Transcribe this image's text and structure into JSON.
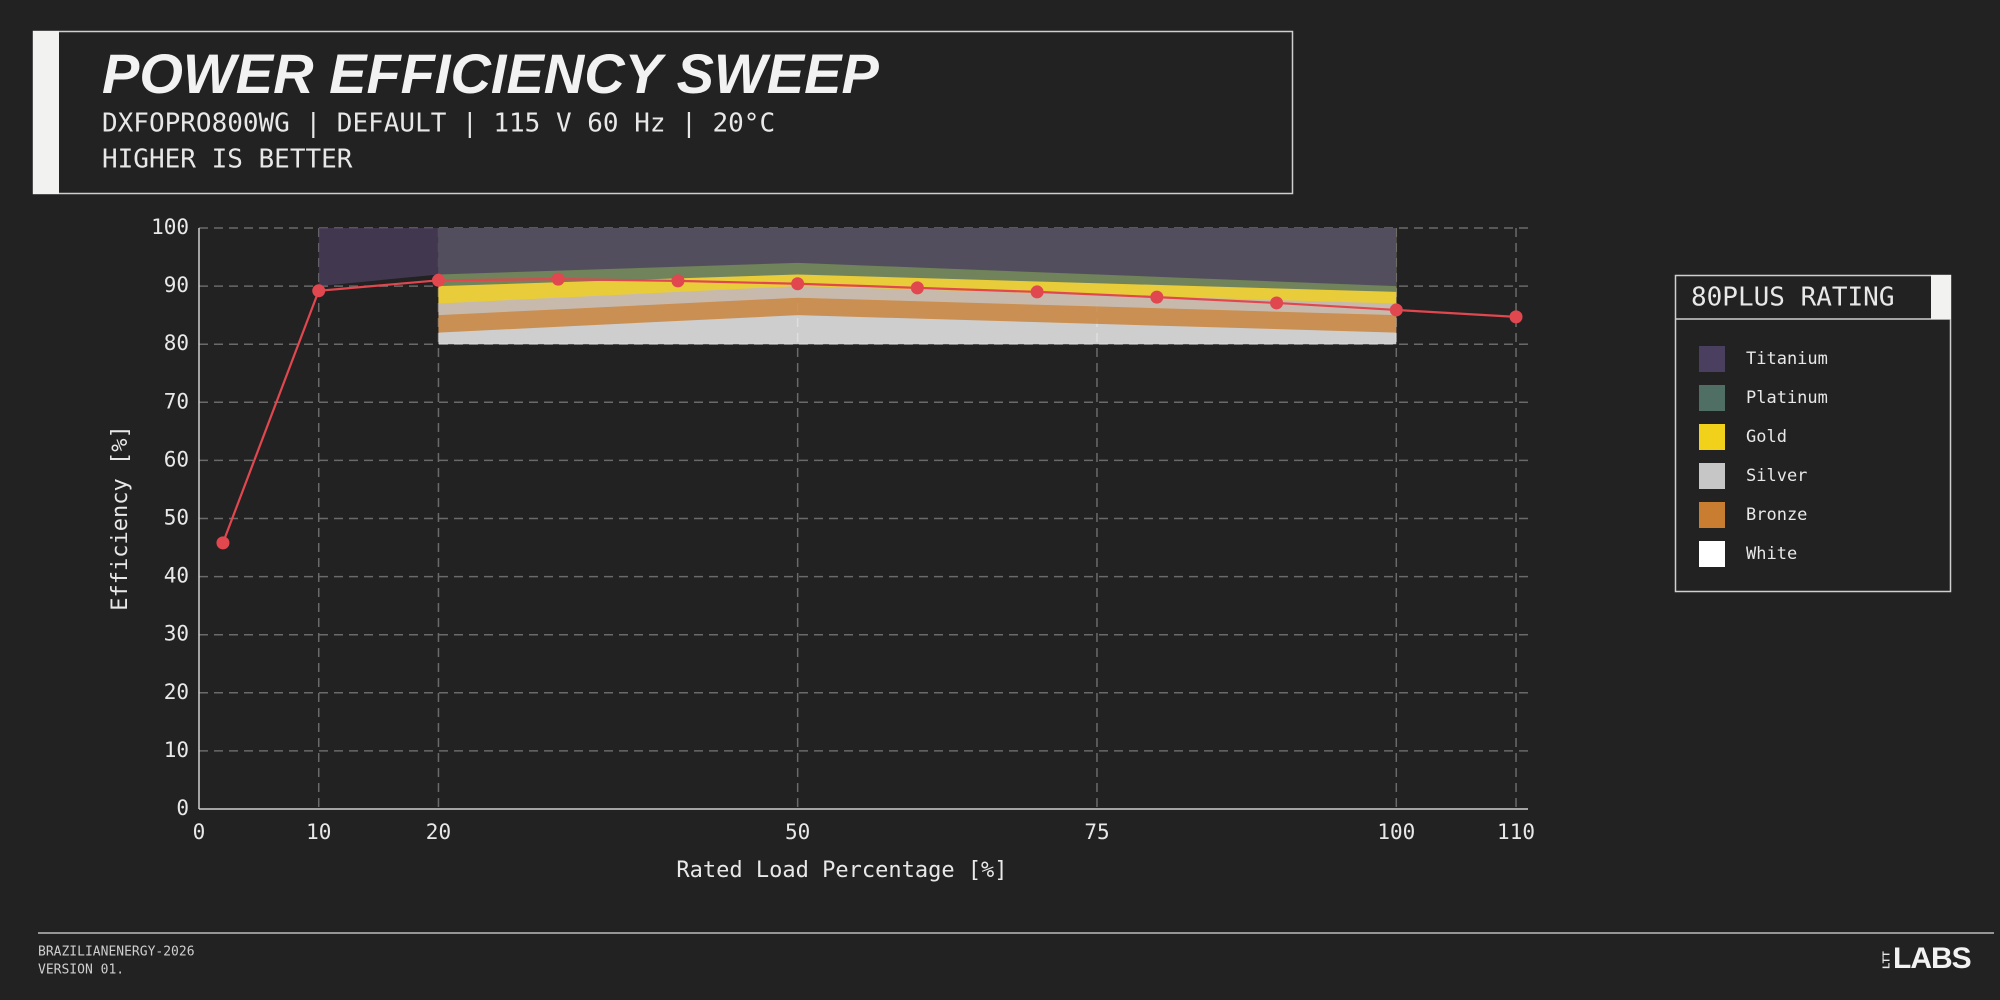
{
  "chart_data": {
    "type": "line",
    "title": "POWER EFFICIENCY SWEEP",
    "subtitle": [
      "DXFOPRO800WG | DEFAULT | 115 V 60 Hz | 20°C",
      "HIGHER IS BETTER"
    ],
    "ylabel": "Efficiency [%]",
    "xlabel": "Rated Load Percentage [%]",
    "xlim": [
      0,
      111
    ],
    "ylim": [
      0,
      100
    ],
    "xticks": [
      0,
      10,
      20,
      50,
      75,
      100,
      110
    ],
    "yticks": [
      0,
      10,
      20,
      30,
      40,
      50,
      60,
      70,
      80,
      90,
      100
    ],
    "grid": true,
    "legend": {
      "title": "80PLUS RATING",
      "position": "right"
    },
    "bands": [
      {
        "name": "Titanium",
        "color": "#4a3f5e",
        "x": [
          10,
          20,
          50,
          100
        ],
        "values": [
          90,
          92,
          94,
          90
        ]
      },
      {
        "name": "Platinum",
        "color": "#4f6e64",
        "x": [
          20,
          50,
          100
        ],
        "values": [
          90,
          92,
          89
        ]
      },
      {
        "name": "Gold",
        "color": "#f2d11a",
        "x": [
          20,
          50,
          100
        ],
        "values": [
          87,
          90,
          87
        ]
      },
      {
        "name": "Silver",
        "color": "#c6c6c6",
        "x": [
          20,
          50,
          100
        ],
        "values": [
          85,
          88,
          85
        ]
      },
      {
        "name": "Bronze",
        "color": "#c97d30",
        "x": [
          20,
          50,
          100
        ],
        "values": [
          82,
          85,
          82
        ]
      },
      {
        "name": "White",
        "color": "#ffffff",
        "x": [
          20,
          50,
          100
        ],
        "values": [
          80,
          80,
          80
        ]
      }
    ],
    "series": [
      {
        "color": "#e0474f",
        "x": [
          2,
          10,
          20,
          30,
          40,
          50,
          60,
          70,
          80,
          90,
          100,
          110
        ],
        "values": [
          45.8,
          89.2,
          91.0,
          91.2,
          90.9,
          90.4,
          89.7,
          89.0,
          88.1,
          87.1,
          85.9,
          84.7
        ]
      }
    ]
  },
  "footer": {
    "lines": [
      "BRAZILIANENERGY-2026",
      "VERSION 01."
    ],
    "logo": [
      "LTT",
      "LABS"
    ]
  }
}
